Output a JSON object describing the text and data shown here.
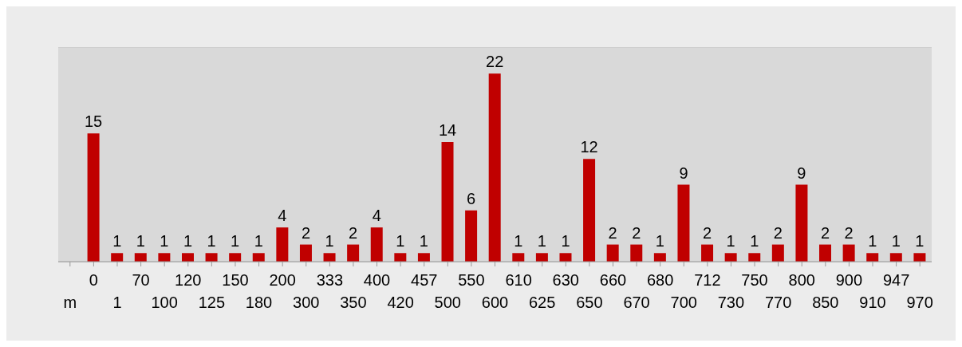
{
  "chart_data": {
    "type": "bar",
    "categories": [
      "m",
      "0",
      "1",
      "70",
      "100",
      "120",
      "125",
      "150",
      "180",
      "200",
      "300",
      "333",
      "350",
      "400",
      "420",
      "457",
      "500",
      "550",
      "600",
      "610",
      "625",
      "630",
      "650",
      "660",
      "670",
      "680",
      "700",
      "712",
      "730",
      "750",
      "770",
      "800",
      "850",
      "900",
      "910",
      "947",
      "970"
    ],
    "values": [
      null,
      15,
      1,
      1,
      1,
      1,
      1,
      1,
      1,
      4,
      2,
      1,
      2,
      4,
      1,
      1,
      14,
      6,
      22,
      1,
      1,
      1,
      12,
      2,
      2,
      1,
      9,
      2,
      1,
      1,
      2,
      9,
      2,
      2,
      1,
      1,
      1
    ],
    "color": "#c00000",
    "ylim": [
      0,
      25
    ],
    "tick_labels": "x",
    "grid": "y",
    "data_labels": true
  }
}
